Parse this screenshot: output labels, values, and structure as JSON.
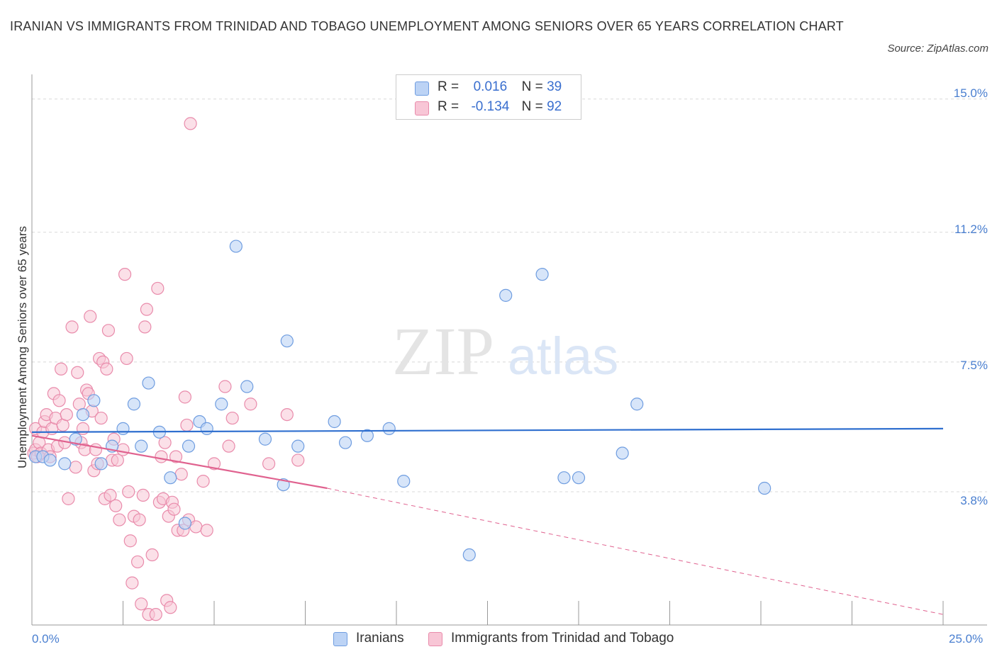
{
  "title": "IRANIAN VS IMMIGRANTS FROM TRINIDAD AND TOBAGO UNEMPLOYMENT AMONG SENIORS OVER 65 YEARS CORRELATION CHART",
  "source": "Source: ZipAtlas.com",
  "watermark": {
    "zip": "ZIP",
    "atlas": "atlas"
  },
  "legend": {
    "iranians": {
      "r_label": "R =",
      "r_value": "0.016",
      "n_label": "N =",
      "n_value": "39"
    },
    "trinidad": {
      "r_label": "R =",
      "r_value": "-0.134",
      "n_label": "N =",
      "n_value": "92"
    }
  },
  "bottom_legend": {
    "iranians": "Iranians",
    "trinidad": "Immigrants from Trinidad and Tobago"
  },
  "colors": {
    "blue_fill": "#bcd3f5",
    "blue_stroke": "#6f9de0",
    "blue_line": "#2f6fcf",
    "pink_fill": "#f8c6d6",
    "pink_stroke": "#e98bab",
    "pink_line": "#e0628f",
    "tick_text": "#4a7fd0",
    "grid": "#d8d8d8"
  },
  "chart_data": {
    "type": "scatter",
    "title": "IRANIAN VS IMMIGRANTS FROM TRINIDAD AND TOBAGO UNEMPLOYMENT AMONG SENIORS OVER 65 YEARS CORRELATION CHART",
    "xlabel": "",
    "ylabel": "Unemployment Among Seniors over 65 years",
    "xlim": [
      0,
      25
    ],
    "ylim": [
      0,
      15.5
    ],
    "x_tick_labels": [
      "0.0%",
      "25.0%"
    ],
    "y_ticks": [
      3.8,
      7.5,
      11.2,
      15.0
    ],
    "y_tick_labels": [
      "3.8%",
      "7.5%",
      "11.2%",
      "15.0%"
    ],
    "grid": "horizontal dashed",
    "legend_placement": "top-center",
    "series": [
      {
        "name": "Iranians",
        "r": 0.016,
        "n": 39,
        "trend": {
          "x": [
            0,
            25
          ],
          "y": [
            5.5,
            5.6
          ]
        },
        "points": [
          [
            0.1,
            4.8
          ],
          [
            0.3,
            4.8
          ],
          [
            0.5,
            4.7
          ],
          [
            0.9,
            4.6
          ],
          [
            1.2,
            5.3
          ],
          [
            1.4,
            6.0
          ],
          [
            1.7,
            6.4
          ],
          [
            1.9,
            4.6
          ],
          [
            2.2,
            5.1
          ],
          [
            2.5,
            5.6
          ],
          [
            2.8,
            6.3
          ],
          [
            3.0,
            5.1
          ],
          [
            3.2,
            6.9
          ],
          [
            3.5,
            5.5
          ],
          [
            3.8,
            4.2
          ],
          [
            4.2,
            2.9
          ],
          [
            4.3,
            5.1
          ],
          [
            4.6,
            5.8
          ],
          [
            4.8,
            5.6
          ],
          [
            5.2,
            6.3
          ],
          [
            5.6,
            10.8
          ],
          [
            5.9,
            6.8
          ],
          [
            6.4,
            5.3
          ],
          [
            6.9,
            4.0
          ],
          [
            7.0,
            8.1
          ],
          [
            7.3,
            5.1
          ],
          [
            8.3,
            5.8
          ],
          [
            8.6,
            5.2
          ],
          [
            9.2,
            5.4
          ],
          [
            9.8,
            5.6
          ],
          [
            10.2,
            4.1
          ],
          [
            12.0,
            2.0
          ],
          [
            13.0,
            9.4
          ],
          [
            14.0,
            10.0
          ],
          [
            14.6,
            4.2
          ],
          [
            15.0,
            4.2
          ],
          [
            16.2,
            4.9
          ],
          [
            16.6,
            6.3
          ],
          [
            20.1,
            3.9
          ]
        ]
      },
      {
        "name": "Immigrants from Trinidad and Tobago",
        "r": -0.134,
        "n": 92,
        "trend": {
          "x": [
            0,
            8.1
          ],
          "y": [
            5.4,
            3.9
          ]
        },
        "trend_dashed": {
          "x": [
            8.1,
            25
          ],
          "y": [
            3.9,
            0.3
          ]
        },
        "points": [
          [
            0.05,
            4.9
          ],
          [
            0.1,
            5.0
          ],
          [
            0.1,
            5.6
          ],
          [
            0.15,
            4.8
          ],
          [
            0.2,
            5.2
          ],
          [
            0.25,
            4.9
          ],
          [
            0.3,
            5.5
          ],
          [
            0.35,
            5.8
          ],
          [
            0.4,
            6.0
          ],
          [
            0.45,
            5.0
          ],
          [
            0.5,
            4.8
          ],
          [
            0.55,
            5.6
          ],
          [
            0.6,
            6.6
          ],
          [
            0.65,
            5.9
          ],
          [
            0.7,
            5.1
          ],
          [
            0.75,
            6.4
          ],
          [
            0.8,
            7.3
          ],
          [
            0.85,
            5.7
          ],
          [
            0.9,
            5.2
          ],
          [
            0.95,
            6.0
          ],
          [
            1.0,
            3.6
          ],
          [
            1.1,
            8.5
          ],
          [
            1.2,
            4.5
          ],
          [
            1.25,
            7.2
          ],
          [
            1.3,
            6.3
          ],
          [
            1.35,
            5.2
          ],
          [
            1.4,
            5.6
          ],
          [
            1.45,
            5.0
          ],
          [
            1.5,
            6.7
          ],
          [
            1.55,
            6.6
          ],
          [
            1.6,
            8.8
          ],
          [
            1.65,
            6.1
          ],
          [
            1.7,
            4.4
          ],
          [
            1.75,
            5.0
          ],
          [
            1.8,
            4.6
          ],
          [
            1.85,
            7.6
          ],
          [
            1.9,
            5.9
          ],
          [
            1.95,
            7.5
          ],
          [
            2.0,
            3.6
          ],
          [
            2.05,
            7.3
          ],
          [
            2.1,
            8.4
          ],
          [
            2.15,
            3.7
          ],
          [
            2.2,
            4.7
          ],
          [
            2.25,
            5.3
          ],
          [
            2.3,
            3.4
          ],
          [
            2.35,
            4.7
          ],
          [
            2.4,
            3.0
          ],
          [
            2.5,
            5.0
          ],
          [
            2.55,
            10.0
          ],
          [
            2.6,
            7.6
          ],
          [
            2.65,
            3.8
          ],
          [
            2.7,
            2.4
          ],
          [
            2.75,
            1.2
          ],
          [
            2.8,
            3.1
          ],
          [
            2.9,
            1.8
          ],
          [
            2.95,
            3.0
          ],
          [
            3.0,
            0.6
          ],
          [
            3.05,
            3.7
          ],
          [
            3.1,
            8.5
          ],
          [
            3.15,
            9.0
          ],
          [
            3.2,
            0.3
          ],
          [
            3.3,
            2.0
          ],
          [
            3.4,
            0.3
          ],
          [
            3.45,
            9.6
          ],
          [
            3.5,
            3.5
          ],
          [
            3.55,
            4.8
          ],
          [
            3.6,
            3.6
          ],
          [
            3.65,
            5.2
          ],
          [
            3.7,
            0.7
          ],
          [
            3.75,
            3.1
          ],
          [
            3.8,
            0.5
          ],
          [
            3.85,
            3.5
          ],
          [
            3.9,
            3.3
          ],
          [
            3.95,
            4.8
          ],
          [
            4.0,
            2.7
          ],
          [
            4.1,
            4.3
          ],
          [
            4.15,
            2.7
          ],
          [
            4.2,
            6.5
          ],
          [
            4.25,
            5.7
          ],
          [
            4.3,
            3.0
          ],
          [
            4.35,
            14.3
          ],
          [
            4.5,
            2.8
          ],
          [
            4.7,
            4.1
          ],
          [
            4.8,
            2.7
          ],
          [
            5.0,
            4.6
          ],
          [
            5.3,
            6.8
          ],
          [
            5.4,
            5.1
          ],
          [
            5.5,
            5.9
          ],
          [
            6.0,
            6.3
          ],
          [
            6.5,
            4.6
          ],
          [
            7.0,
            6.0
          ],
          [
            7.3,
            4.7
          ]
        ]
      }
    ]
  }
}
